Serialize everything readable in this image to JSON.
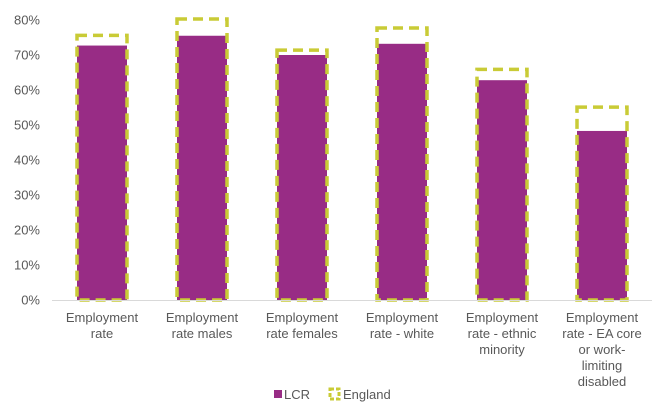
{
  "chart_data": {
    "type": "bar",
    "title": "",
    "xlabel": "",
    "ylabel": "",
    "categories": [
      [
        "Employment",
        "rate"
      ],
      [
        "Employment",
        "rate males"
      ],
      [
        "Employment",
        "rate females"
      ],
      [
        "Employment",
        "rate - white"
      ],
      [
        "Employment",
        "rate - ethnic",
        "minority"
      ],
      [
        "Employment",
        "rate - EA core",
        "or work-",
        "limiting",
        "disabled"
      ]
    ],
    "series": [
      {
        "name": "LCR",
        "values": [
          72.7,
          75.5,
          70.0,
          73.2,
          62.8,
          48.3
        ],
        "color": "#982C85",
        "style": "filled bar"
      },
      {
        "name": "England",
        "values": [
          75.6,
          80.3,
          71.4,
          77.7,
          65.9,
          55.1
        ],
        "color": "#C9CB36",
        "style": "dashed outline bar"
      }
    ],
    "ylim": [
      0,
      80
    ],
    "yticks": [
      "0%",
      "10%",
      "20%",
      "30%",
      "40%",
      "50%",
      "60%",
      "70%",
      "80%"
    ],
    "grid": false,
    "legend_position": "bottom"
  }
}
